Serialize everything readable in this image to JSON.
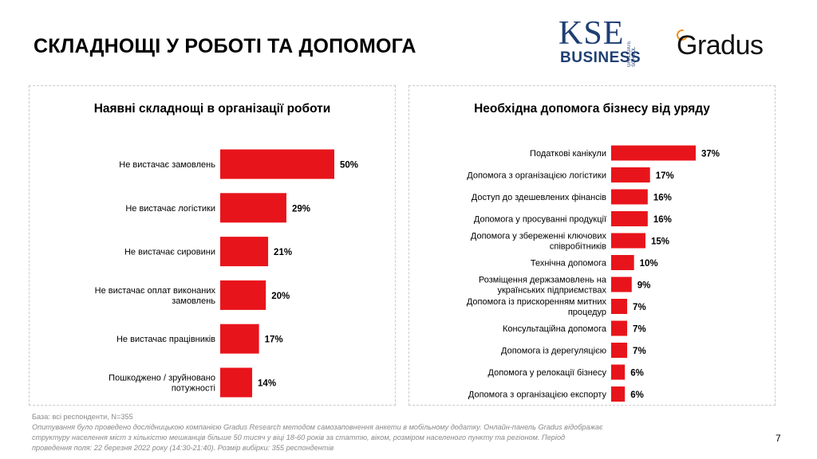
{
  "page": {
    "title": "СКЛАДНОЩІ У РОБОТІ ТА ДОПОМОГА",
    "page_number": "7"
  },
  "logos": {
    "kse_main": "KSE",
    "kse_sub": "GRADUATE SCHOOL",
    "kse_business": "BUSINESS",
    "gradus": "Gradus",
    "kse_color": "#1f3f73",
    "gradus_accent": "#f28b1e"
  },
  "footer": {
    "base": "База: всі респонденти, N=355",
    "note": "Опитування було проведено дослідницькою компанією Gradus Research методом самозаповнення анкети в мобільному додатку. Онлайн-панель Gradus відображає структуру населення міст з кількістю мешканців більше 50 тисяч у віці 18-60 років за статтю, віком, розміром населеного пункту та регіоном. Період проведення поля: 22 березня 2022 року (14:30-21:40). Розмір вибірки: 355 респондентів"
  },
  "chart_data": [
    {
      "type": "bar",
      "orientation": "horizontal",
      "title": "Наявні складнощі в організації роботи",
      "categories": [
        "Не вистачає замовлень",
        "Не вистачає логістики",
        "Не вистачає сировини",
        "Не вистачає оплат виконаних замовлень",
        "Не вистачає працівників",
        "Пошкоджено / зруйновано потужності"
      ],
      "values": [
        50,
        29,
        21,
        20,
        17,
        14
      ],
      "value_labels": [
        "50%",
        "29%",
        "21%",
        "20%",
        "17%",
        "14%"
      ],
      "unit": "%",
      "color": "#e8141b",
      "grid": false,
      "legend": "none"
    },
    {
      "type": "bar",
      "orientation": "horizontal",
      "title": "Необхідна допомога бізнесу від уряду",
      "categories": [
        "Податкові канікули",
        "Допомога з організацією логістики",
        "Доступ до здешевлених фінансів",
        "Допомога у просуванні продукції",
        "Допомога у збереженні ключових співробітників",
        "Технічна допомога",
        "Розміщення держзамовлень на українських підприємствах",
        "Допомога із прискоренням митних процедур",
        "Консультаційна допомога",
        "Допомога із дерегуляцією",
        "Допомога у релокації бізнесу",
        "Допомога з організацією експорту"
      ],
      "values": [
        37,
        17,
        16,
        16,
        15,
        10,
        9,
        7,
        7,
        7,
        6,
        6
      ],
      "value_labels": [
        "37%",
        "17%",
        "16%",
        "16%",
        "15%",
        "10%",
        "9%",
        "7%",
        "7%",
        "7%",
        "6%",
        "6%"
      ],
      "unit": "%",
      "color": "#e8141b",
      "grid": false,
      "legend": "none"
    }
  ]
}
